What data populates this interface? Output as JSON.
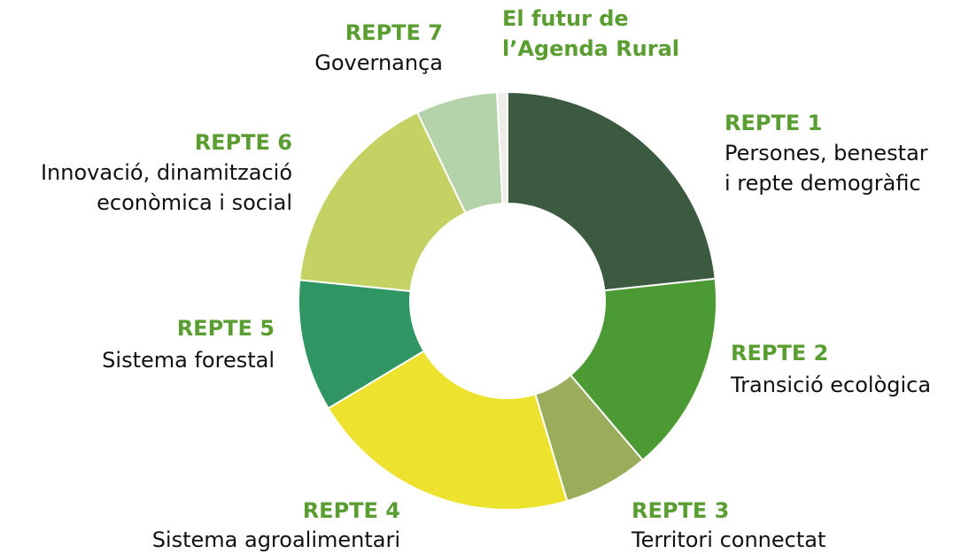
{
  "chart_data": {
    "type": "donut",
    "categories": [
      {
        "heading": [
          "REPTE 1"
        ],
        "description": [
          "Persones, benestar",
          "i repte demogràfic"
        ]
      },
      {
        "heading": [
          "REPTE 2"
        ],
        "description": [
          "Transició ecològica"
        ]
      },
      {
        "heading": [
          "REPTE 3"
        ],
        "description": [
          "Territori connectat"
        ]
      },
      {
        "heading": [
          "REPTE 4"
        ],
        "description": [
          "Sistema agroalimentari"
        ]
      },
      {
        "heading": [
          "REPTE 5"
        ],
        "description": [
          "Sistema forestal"
        ]
      },
      {
        "heading": [
          "REPTE 6"
        ],
        "description": [
          "Innovació, dinamització",
          "econòmica i social"
        ]
      },
      {
        "heading": [
          "REPTE 7"
        ],
        "description": [
          "Governança"
        ]
      },
      {
        "heading": [
          "El futur de",
          "l’Agenda Rural"
        ]
      }
    ],
    "values": [
      23.3,
      15.5,
      6.6,
      21,
      10.2,
      16.3,
      6.3,
      0.8
    ],
    "colors": [
      "#3b5a40",
      "#4c9a34",
      "#9aad5b",
      "#ede22e",
      "#2e9563",
      "#c4d264",
      "#b5d3aa",
      "#eeeee8"
    ],
    "heading_color": "#5a9e32"
  }
}
